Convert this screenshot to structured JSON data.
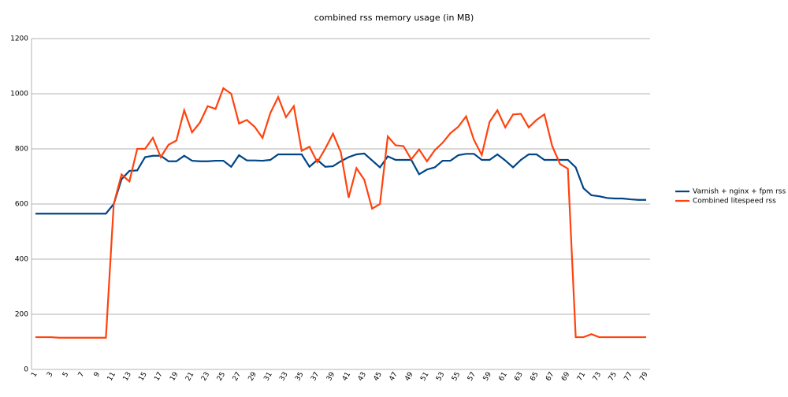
{
  "chart_data": {
    "type": "line",
    "title": "combined rss memory usage (in MB)",
    "categories": [
      "1",
      null,
      "3",
      null,
      "5",
      null,
      "7",
      null,
      "9",
      null,
      "11",
      null,
      "13",
      null,
      "15",
      null,
      "17",
      null,
      "19",
      null,
      "21",
      null,
      "23",
      null,
      "25",
      null,
      "27",
      null,
      "29",
      null,
      "31",
      null,
      "33",
      null,
      "35",
      null,
      "37",
      null,
      "39",
      null,
      "41",
      null,
      "43",
      null,
      "45",
      null,
      "47",
      null,
      "49",
      null,
      "51",
      null,
      "53",
      null,
      "55",
      null,
      "57",
      null,
      "59",
      null,
      "61",
      null,
      "63",
      null,
      "65",
      null,
      "67",
      null,
      "69",
      null,
      "71",
      null,
      "73",
      null,
      "75",
      null,
      "77",
      null,
      "79"
    ],
    "series": [
      {
        "name": "Varnish + nginx + fpm rss",
        "color": "#004586",
        "values": [
          565,
          565,
          565,
          565,
          565,
          565,
          565,
          565,
          565,
          565,
          600,
          690,
          720,
          722,
          770,
          775,
          775,
          755,
          755,
          775,
          757,
          755,
          755,
          757,
          757,
          735,
          777,
          758,
          758,
          757,
          760,
          780,
          780,
          780,
          780,
          735,
          760,
          735,
          737,
          755,
          770,
          780,
          783,
          758,
          733,
          773,
          760,
          760,
          760,
          708,
          725,
          733,
          757,
          757,
          777,
          782,
          782,
          760,
          760,
          780,
          758,
          733,
          760,
          780,
          780,
          760,
          760,
          760,
          760,
          733,
          657,
          632,
          628,
          622,
          620,
          620,
          617,
          615,
          615
        ]
      },
      {
        "name": "Combined litespeed rss",
        "color": "#ff420e",
        "values": [
          117,
          117,
          117,
          115,
          115,
          115,
          115,
          115,
          115,
          115,
          600,
          707,
          682,
          800,
          800,
          840,
          770,
          815,
          830,
          940,
          860,
          895,
          955,
          945,
          1020,
          1000,
          892,
          905,
          880,
          840,
          930,
          988,
          915,
          955,
          793,
          808,
          752,
          800,
          855,
          788,
          623,
          730,
          688,
          583,
          600,
          845,
          813,
          810,
          762,
          798,
          755,
          795,
          822,
          857,
          880,
          918,
          833,
          778,
          898,
          940,
          878,
          925,
          927,
          878,
          905,
          925,
          810,
          745,
          728,
          117,
          117,
          128,
          117,
          117,
          117,
          117,
          117,
          117,
          117
        ]
      }
    ],
    "ylim": [
      0,
      1200
    ],
    "yticks": [
      0,
      200,
      400,
      600,
      800,
      1000,
      1200
    ],
    "grid": true,
    "legend": "right"
  }
}
